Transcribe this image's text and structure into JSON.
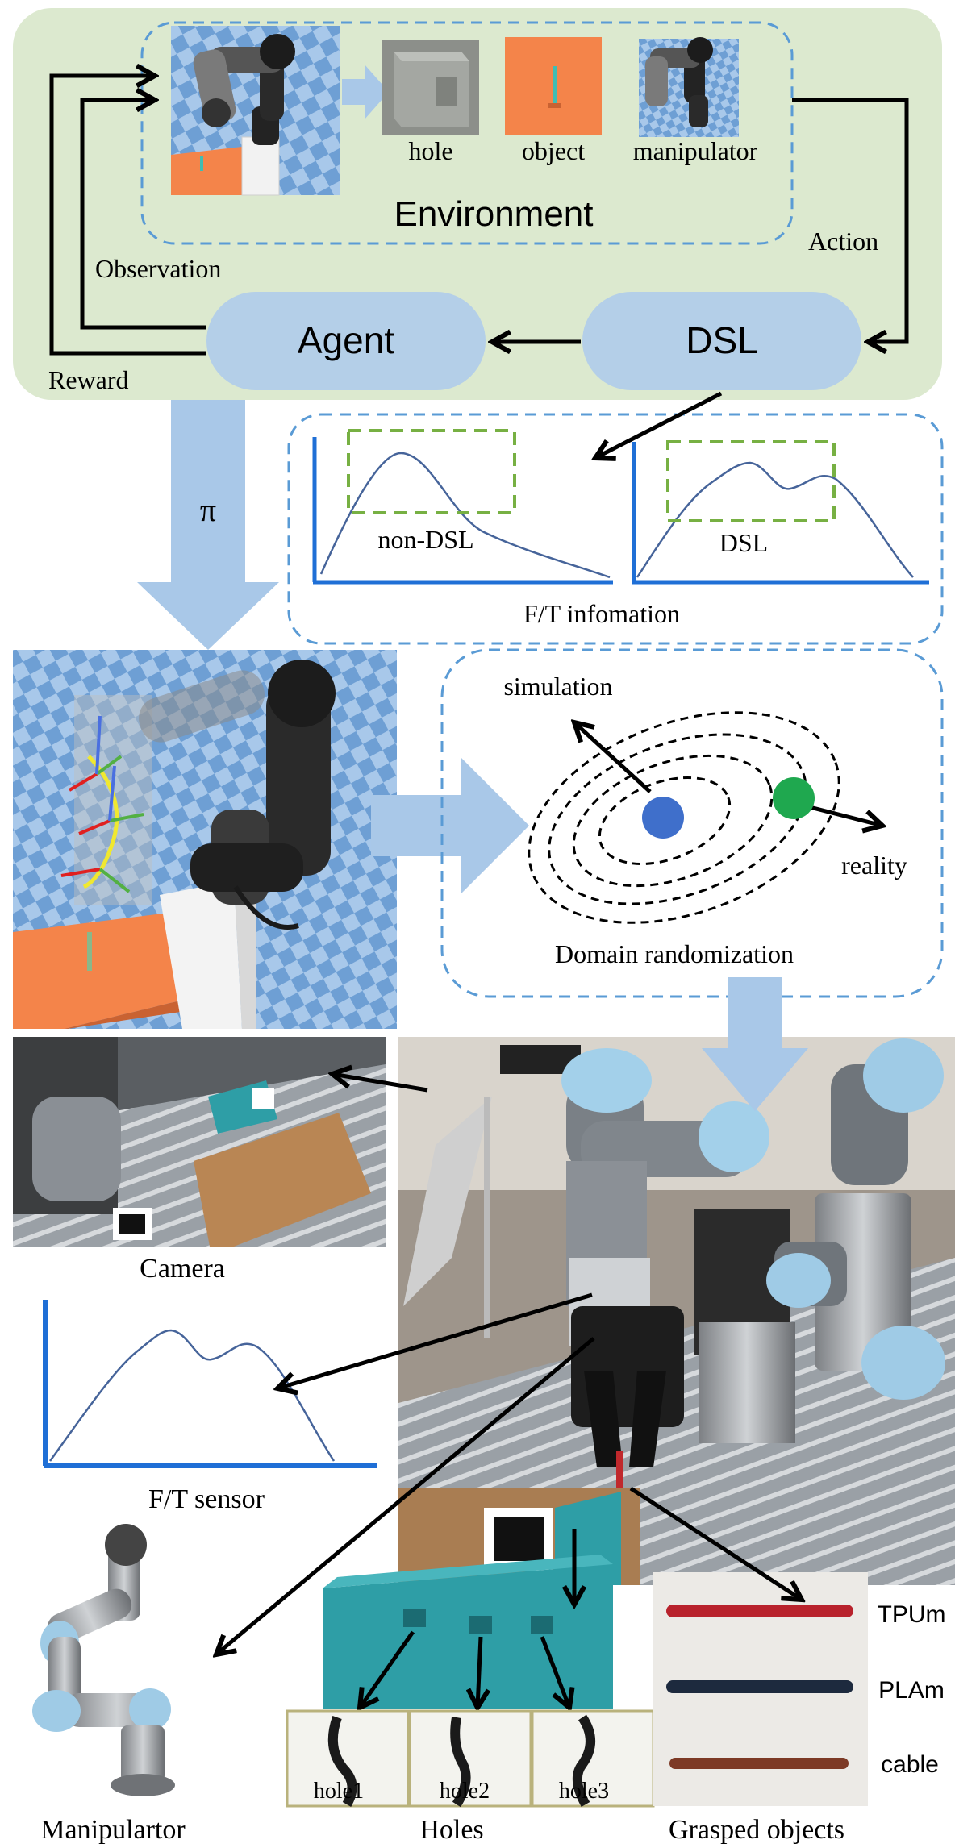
{
  "environment": {
    "title": "Environment",
    "observation_items": [
      "hole",
      "object",
      "manipulator"
    ]
  },
  "loop": {
    "observation": "Observation",
    "reward": "Reward",
    "action": "Action",
    "agent": "Agent",
    "dsl": "DSL",
    "policy": "π"
  },
  "ft_info": {
    "title": "F/T infomation",
    "plot_non_dsl": "non-DSL",
    "plot_dsl": "DSL"
  },
  "domain_randomization": {
    "title": "Domain randomization",
    "simulation": "simulation",
    "reality": "reality"
  },
  "real_setup": {
    "camera": "Camera",
    "ft_sensor": "F/T sensor",
    "manipulator": "Manipulartor",
    "holes": "Holes",
    "hole_labels": [
      "hole1",
      "hole2",
      "hole3"
    ],
    "grasped_objects": "Grasped objects",
    "object_labels": [
      "TPUm",
      "PLAm",
      "cable"
    ]
  },
  "colors": {
    "green_panel": "#dce9cf",
    "blue_arrow": "#a9c8e8",
    "pill": "#b4cfe8",
    "dashed_blue": "#5a9bd5",
    "dashed_green": "#77b043",
    "axis_blue": "#1f6fd6",
    "orange": "#f4844a",
    "teal": "#2e9ea6",
    "sim_dot": "#3f6fcb",
    "real_dot": "#1fa84f"
  }
}
